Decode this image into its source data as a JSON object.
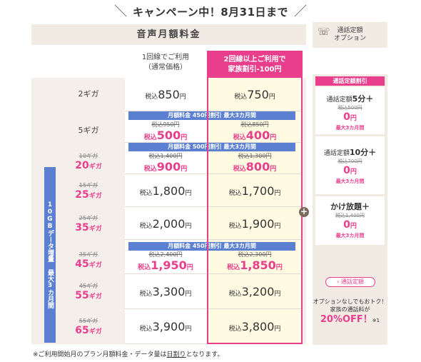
{
  "banner": {
    "text": "キャンペーン中！8月31日まで"
  },
  "main": {
    "title": "音声月額料金",
    "col_single": [
      "1回線でご利用",
      "（通常価格）"
    ],
    "col_family": [
      "2回線以上ご利用で",
      "家族割引-100円"
    ],
    "rows": [
      {
        "gb_label": "2ギガ",
        "single_pre": "税込",
        "single": "850",
        "family_pre": "税込",
        "family": "750",
        "en": "円"
      },
      {
        "gb_label": "5ギガ",
        "single_old": "税込950円",
        "single_new": "500",
        "family_old": "税込850円",
        "family_new": "400",
        "strip": "月額料金 450円割引 最大3カ月間"
      },
      {
        "gb_old": "10ギガ",
        "gb_new": "20",
        "single_old": "税込1,400円",
        "single_new": "900",
        "family_old": "税込1,300円",
        "family_new": "800",
        "strip": "月額料金 500円割引 最大3カ月間"
      },
      {
        "gb_old": "15ギガ",
        "gb_new": "25",
        "single": "1,800",
        "family": "1,700"
      },
      {
        "gb_old": "25ギガ",
        "gb_new": "35",
        "single": "2,000",
        "family": "1,900"
      },
      {
        "gb_old": "35ギガ",
        "gb_new": "45",
        "single_old": "税込2,400円",
        "single_new": "1,950",
        "family_old": "税込2,300円",
        "family_new": "1,850",
        "strip": "月額料金 450円割引 最大3カ月間"
      },
      {
        "gb_old": "45ギガ",
        "gb_new": "55",
        "single": "3,300",
        "family": "3,200"
      },
      {
        "gb_old": "55ギガ",
        "gb_new": "65",
        "single": "3,900",
        "family": "3,800"
      }
    ],
    "gb_unit": "ギガ",
    "tax": "税込",
    "yen": "円",
    "vbar": "10GBデータ増量 最大3カ月間"
  },
  "side": {
    "head": [
      "通話定額",
      "オプション"
    ],
    "title": "通話定額割引",
    "cards": [
      {
        "name": "通話定額",
        "name_b": "5分＋",
        "old": "税込500円",
        "new": "0",
        "max": "最大3カ月間"
      },
      {
        "name": "通話定額",
        "name_b": "10分＋",
        "old": "税込700円",
        "new": "0",
        "max": "最大3カ月間"
      },
      {
        "name": "",
        "name_b": "かけ放題＋",
        "old": "税込1,400円",
        "new": "0",
        "max": "最大3カ月間"
      }
    ],
    "pill": "通話定額",
    "promo_1": "オプションなしでもおトク！",
    "promo_2": "家族の通話料が",
    "promo_big": "20%OFF！",
    "promo_note": "※1"
  },
  "footnote": {
    "pre": "※ご利用開始月のプラン月額料金・データ量は",
    "u": "日割り",
    "post": "となります。"
  },
  "colors": {
    "pink": "#e83e8c",
    "blue": "#5b80d1",
    "beige": "#f2ebe4",
    "cream": "#fffbe3"
  }
}
